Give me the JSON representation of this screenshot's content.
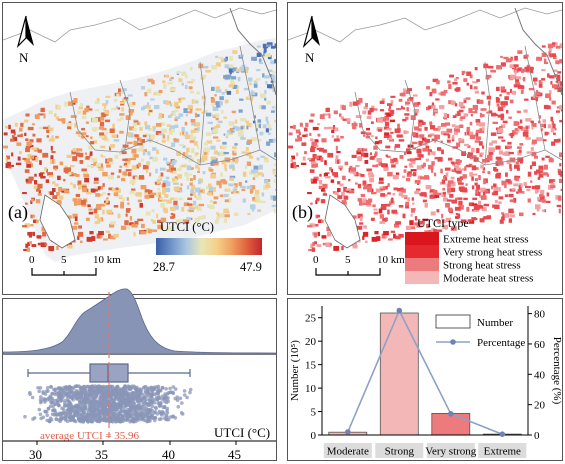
{
  "panel_a": {
    "label": "(a)",
    "north": "N",
    "scale": {
      "ticks": [
        "0",
        "5",
        "10 km"
      ]
    },
    "legend": {
      "title": "UTCI (°C)",
      "min": "28.7",
      "max": "47.9",
      "colors": [
        "#3b5ea8",
        "#6f93c8",
        "#a9c6e0",
        "#e8e6b8",
        "#f5d089",
        "#f0a062",
        "#e0613d",
        "#c2262b"
      ]
    },
    "map_colors": [
      "#4a71b3",
      "#7fa3cf",
      "#b6d0e3",
      "#e6e4b6",
      "#f2cc88",
      "#ef9e63",
      "#e06a44",
      "#cc3a30"
    ]
  },
  "panel_b": {
    "label": "(b)",
    "north": "N",
    "scale": {
      "ticks": [
        "0",
        "5",
        "10 km"
      ]
    },
    "legend": {
      "title": "UTCI type",
      "items": [
        {
          "label": "Extreme heat stress",
          "color": "#d9161d"
        },
        {
          "label": "Very strong heat stress",
          "color": "#e52a2f"
        },
        {
          "label": "Strong heat stress",
          "color": "#ed7b7d"
        },
        {
          "label": "Moderate heat stress",
          "color": "#f4b7b8"
        }
      ]
    },
    "map_colors": [
      "#e8494f",
      "#ee6d70",
      "#f3a2a4",
      "#dd2529"
    ]
  },
  "distribution": {
    "average_label": "average UTCI = 35.96",
    "xlabel": "UTCI (°C)",
    "ticks": [
      "30",
      "35",
      "40",
      "45"
    ]
  },
  "chart_data": {
    "type": "bar",
    "categories": [
      "Moderate",
      "Strong",
      "Very strong",
      "Extreme"
    ],
    "series": [
      {
        "name": "Number",
        "values": [
          0.6,
          26.0,
          4.6,
          0.2
        ],
        "colors": [
          "#f4b7b8",
          "#f4b7b8",
          "#ed7b7d",
          "#d9161d"
        ]
      },
      {
        "name": "Percentage",
        "values": [
          2,
          82,
          14,
          0.5
        ]
      }
    ],
    "ylabel": "Number (10⁵)",
    "y2label": "Percentage (%)",
    "yticks": [
      "0",
      "5",
      "10",
      "15",
      "20",
      "25"
    ],
    "y2ticks": [
      "0",
      "20",
      "40",
      "60",
      "80"
    ],
    "ylim": [
      0,
      27.5
    ],
    "y2lim": [
      0,
      85
    ],
    "legend": "top-right"
  }
}
